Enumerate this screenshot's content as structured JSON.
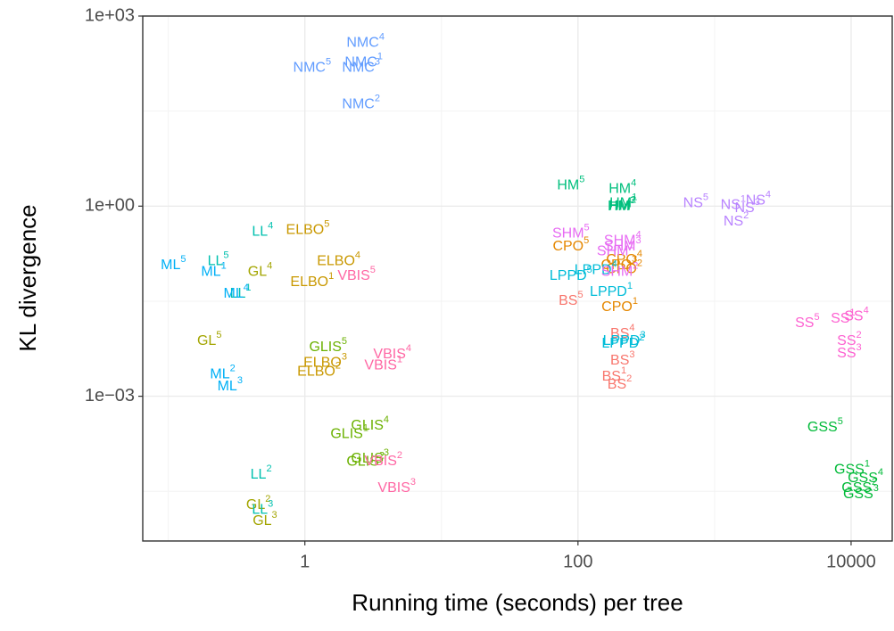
{
  "chart_data": {
    "type": "text-scatter",
    "x_label": "Running time (seconds) per tree",
    "y_label": "KL divergence",
    "log_x": true,
    "log_y": true,
    "grid": true,
    "xlim": [
      0.065,
      20000
    ],
    "ylim": [
      5.2e-06,
      1000
    ],
    "xticks": [
      1,
      100,
      10000
    ],
    "yticks": [
      {
        "value": 1000,
        "label": "1e+03"
      },
      {
        "value": 1,
        "label": "1e+00"
      },
      {
        "value": 0.001,
        "label": "1e−03"
      }
    ],
    "x_minor_grid": [
      0.1,
      10,
      1000
    ],
    "y_minor_grid": [
      31.62,
      0.03162,
      3.162e-05
    ],
    "series": [
      {
        "name": "BS",
        "color": "#F8766D",
        "x": [
          88.7,
          184,
          202,
          212,
          212
        ],
        "values": [
          0.0316,
          0.002,
          0.0015,
          0.0036,
          0.0095
        ],
        "runs": [
          5,
          1,
          2,
          3,
          4
        ]
      },
      {
        "name": "CPO",
        "color": "#E58700",
        "x": [
          88.7,
          218,
          200,
          218,
          202
        ],
        "values": [
          0.226,
          0.139,
          0.115,
          0.1,
          0.025
        ],
        "runs": [
          5,
          4,
          3,
          2,
          1
        ]
      },
      {
        "name": "ELBO",
        "color": "#C99800",
        "x": [
          1.05,
          1.77,
          1.13,
          1.41,
          1.27
        ],
        "values": [
          0.417,
          0.134,
          0.062,
          0.0033,
          0.0024
        ],
        "runs": [
          5,
          4,
          1,
          3,
          2
        ]
      },
      {
        "name": "GL",
        "color": "#A3A500",
        "x": [
          0.47,
          0.2,
          0.457,
          0.51
        ],
        "values": [
          0.091,
          0.0073,
          1.9e-05,
          1.06e-05
        ],
        "runs": [
          4,
          5,
          2,
          3
        ]
      },
      {
        "name": "GLIS",
        "color": "#6BB100",
        "x": [
          1.48,
          3.0,
          2.12,
          3.0,
          2.78
        ],
        "values": [
          0.0059,
          0.00034,
          0.00025,
          0.000102,
          9.2e-05
        ],
        "runs": [
          5,
          4,
          1,
          3,
          2
        ]
      },
      {
        "name": "GSS",
        "color": "#00BA38",
        "x": [
          6460,
          10160,
          12750,
          11500,
          11800
        ],
        "values": [
          0.000317,
          6.8e-05,
          5e-05,
          3.5e-05,
          2.8e-05
        ],
        "runs": [
          5,
          1,
          4,
          2,
          3
        ]
      },
      {
        "name": "HM",
        "color": "#00BF7D",
        "x": [
          88.7,
          212,
          215,
          212,
          208
        ],
        "values": [
          2.1,
          1.85,
          1.1,
          1.0,
          0.97
        ],
        "runs": [
          5,
          4,
          1,
          2,
          3
        ]
      },
      {
        "name": "LL",
        "color": "#00C0AF",
        "x": [
          0.49,
          0.232,
          0.338,
          0.478,
          0.49
        ],
        "values": [
          0.39,
          0.134,
          0.041,
          5.7e-05,
          1.6e-05
        ],
        "runs": [
          4,
          5,
          1,
          2,
          3
        ]
      },
      {
        "name": "LPPD",
        "color": "#00BCD8",
        "x": [
          88.7,
          135,
          175,
          218,
          214
        ],
        "values": [
          0.078,
          0.097,
          0.0434,
          0.0073,
          0.0067
        ],
        "runs": [
          5,
          4,
          1,
          3,
          2
        ]
      },
      {
        "name": "ML",
        "color": "#00B0F6",
        "x": [
          0.109,
          0.215,
          0.314,
          0.25,
          0.283
        ],
        "values": [
          0.115,
          0.091,
          0.041,
          0.0022,
          0.0014
        ],
        "runs": [
          5,
          1,
          4,
          2,
          3
        ]
      },
      {
        "name": "NMC",
        "color": "#619CFF",
        "x": [
          2.78,
          2.7,
          2.58,
          1.13,
          2.58
        ],
        "values": [
          372,
          182,
          151,
          151,
          40
        ],
        "runs": [
          4,
          1,
          3,
          5,
          2
        ]
      },
      {
        "name": "NS",
        "color": "#B983FF",
        "x": [
          729,
          1371,
          2090,
          1740,
          1440
        ],
        "values": [
          1.1,
          1.03,
          1.21,
          0.91,
          0.56
        ],
        "runs": [
          5,
          1,
          4,
          3,
          2
        ]
      },
      {
        "name": "SHM",
        "color": "#E76BF3",
        "x": [
          88.7,
          212,
          212,
          188,
          202
        ],
        "values": [
          0.367,
          0.283,
          0.226,
          0.19,
          0.091
        ],
        "runs": [
          5,
          4,
          3,
          1,
          2
        ]
      },
      {
        "name": "SS",
        "color": "#FD61D1",
        "x": [
          4780,
          8720,
          10950,
          9700,
          9700
        ],
        "values": [
          0.014,
          0.0164,
          0.018,
          0.0073,
          0.0047
        ],
        "runs": [
          5,
          1,
          4,
          2,
          3
        ]
      },
      {
        "name": "VBIS",
        "color": "#FF67A4",
        "x": [
          2.39,
          4.37,
          3.76,
          3.76,
          4.71
        ],
        "values": [
          0.078,
          0.0045,
          0.003,
          9.3e-05,
          3.5e-05
        ],
        "runs": [
          5,
          4,
          1,
          2,
          3
        ]
      }
    ]
  }
}
